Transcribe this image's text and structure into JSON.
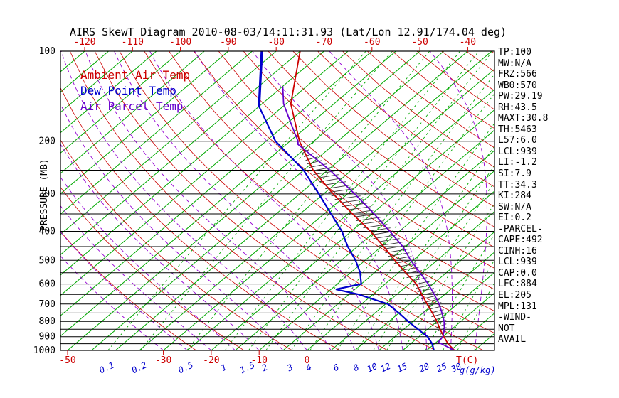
{
  "title": "AIRS SkewT Diagram 2010-08-03/14:11:31.93 (Lat/Lon 12.91/174.04 deg)",
  "axes": {
    "pressure_label": "PRESSURE (MB)",
    "pressure_ticks": [
      100,
      200,
      300,
      400,
      500,
      600,
      700,
      800,
      900,
      1000
    ],
    "top_temp_labels": [
      -120,
      -110,
      -100,
      -90,
      -80,
      -70,
      -60,
      -50,
      -40
    ],
    "bottom_temp_labels": [
      -50,
      -30,
      -20,
      -10,
      0
    ],
    "mixing_ratio_labels": [
      0.1,
      0.2,
      0.5,
      1,
      1.5,
      2,
      3,
      4,
      6,
      8,
      10,
      12,
      15,
      20,
      25,
      30
    ],
    "temp_unit_label": "T(C)",
    "mixing_unit_label": "g(g/kg)"
  },
  "legend": [
    {
      "label": "Ambient Air Temp",
      "color": "#CC0000"
    },
    {
      "label": "Dew Point Temp",
      "color": "#0000CC"
    },
    {
      "label": "Air Parcel Temp",
      "color": "#6600CC"
    }
  ],
  "stats_panel": [
    "TP:100",
    "MW:N/A",
    "FRZ:566",
    "WB0:570",
    "PW:29.19",
    "RH:43.5",
    "MAXT:30.8",
    "TH:5463",
    "L57:6.0",
    "LCL:939",
    "LI:-1.2",
    "SI:7.9",
    "TT:34.3",
    "KI:284",
    "SW:N/A",
    "EI:0.2",
    "-PARCEL-",
    "CAPE:492",
    "CINH:16",
    "LCL:939",
    "CAP:0.0",
    "LFC:884",
    "EL:205",
    "MPL:131",
    "-WIND-",
    "NOT",
    "AVAIL"
  ],
  "colors": {
    "isotherm": "#00A800",
    "mixing_ratio": "#00A800",
    "dry_adiabat": "#CC0000",
    "moist_adiabat": "#9400D3",
    "isobar": "#000000",
    "border": "#000000",
    "hatch": "#333333",
    "axis_text": "#000000",
    "temp_label": "#CC0000",
    "mixing_label": "#0000CC"
  },
  "chart_data": {
    "type": "line",
    "diagram": "skew-t-log-p",
    "title": "AIRS SkewT Diagram 2010-08-03/14:11:31.93 (Lat/Lon 12.91/174.04 deg)",
    "xlabel": "T(C)",
    "ylabel": "PRESSURE (MB)",
    "pressure_range_mb": [
      100,
      1000
    ],
    "bottom_axis_temp_range_c": [
      -50,
      40
    ],
    "series": [
      {
        "name": "Ambient Air Temp",
        "color": "#CC0000",
        "points_p_t": [
          [
            100,
            -75
          ],
          [
            150,
            -64
          ],
          [
            200,
            -53
          ],
          [
            250,
            -43
          ],
          [
            300,
            -33
          ],
          [
            350,
            -24
          ],
          [
            400,
            -16
          ],
          [
            450,
            -9.5
          ],
          [
            500,
            -3.8
          ],
          [
            550,
            1.5
          ],
          [
            600,
            6.5
          ],
          [
            650,
            10.2
          ],
          [
            700,
            13.7
          ],
          [
            750,
            17
          ],
          [
            800,
            20
          ],
          [
            850,
            22.6
          ],
          [
            900,
            25.2
          ],
          [
            950,
            27.8
          ],
          [
            1000,
            30.8
          ]
        ]
      },
      {
        "name": "Dew Point Temp",
        "color": "#0000CC",
        "points_p_t": [
          [
            100,
            -83
          ],
          [
            153,
            -70
          ],
          [
            200,
            -58
          ],
          [
            250,
            -45
          ],
          [
            300,
            -36
          ],
          [
            350,
            -28.5
          ],
          [
            400,
            -22
          ],
          [
            450,
            -17
          ],
          [
            500,
            -12
          ],
          [
            550,
            -8
          ],
          [
            600,
            -5
          ],
          [
            625,
            -9
          ],
          [
            650,
            -3
          ],
          [
            700,
            5.5
          ],
          [
            750,
            10
          ],
          [
            800,
            14
          ],
          [
            850,
            18
          ],
          [
            900,
            21.8
          ],
          [
            950,
            24.5
          ],
          [
            1000,
            26.5
          ]
        ]
      },
      {
        "name": "Air Parcel Temp",
        "color": "#6600CC",
        "points_p_t": [
          [
            131,
            -70
          ],
          [
            150,
            -65.5
          ],
          [
            175,
            -59
          ],
          [
            200,
            -53.3
          ],
          [
            205,
            -52.5
          ],
          [
            250,
            -39.5
          ],
          [
            300,
            -28.5
          ],
          [
            350,
            -19.5
          ],
          [
            400,
            -12
          ],
          [
            450,
            -5.5
          ],
          [
            500,
            -0.5
          ],
          [
            550,
            4.5
          ],
          [
            600,
            9
          ],
          [
            650,
            12.8
          ],
          [
            700,
            16.2
          ],
          [
            750,
            19
          ],
          [
            800,
            21.5
          ],
          [
            850,
            23.5
          ],
          [
            900,
            25
          ],
          [
            939,
            25.4
          ],
          [
            1000,
            30.8
          ]
        ]
      }
    ],
    "hatch_between_pressures": [
      205,
      884
    ],
    "background": {
      "isobars": [
        100,
        200,
        250,
        300,
        350,
        400,
        450,
        500,
        550,
        600,
        650,
        700,
        750,
        800,
        850,
        900,
        950,
        1000
      ],
      "isotherms_c": {
        "min": -125,
        "max": 40,
        "step": 5
      },
      "dry_adiabats_k": {
        "min": 250,
        "max": 460,
        "step": 10
      },
      "moist_adiabats_start_c": {
        "min": -30,
        "max": 40,
        "step": 5
      },
      "mixing_ratio_g_kg": [
        0.1,
        0.2,
        0.5,
        1,
        1.5,
        2,
        3,
        4,
        6,
        8,
        10,
        12,
        15,
        20,
        25,
        30
      ]
    }
  }
}
